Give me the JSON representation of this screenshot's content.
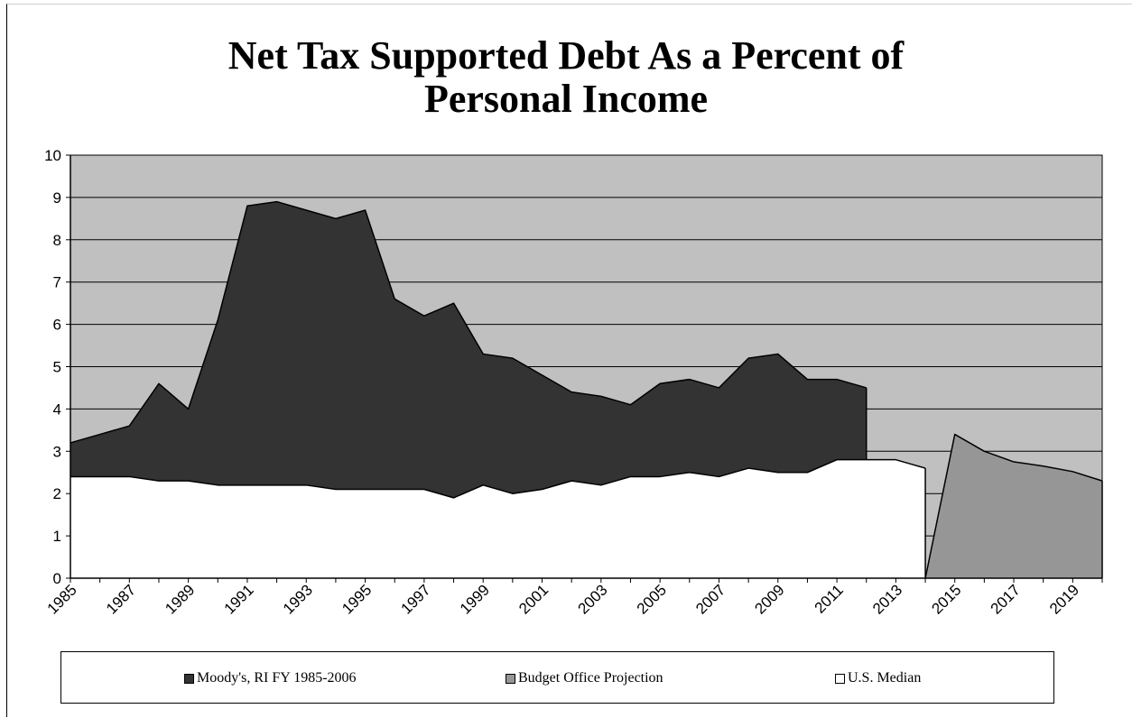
{
  "chart_data": {
    "type": "area",
    "title_lines": [
      "Net Tax Supported Debt As a Percent of",
      "Personal Income"
    ],
    "xlabel": "",
    "ylabel": "",
    "ylim": [
      0,
      10
    ],
    "xlim": [
      1985,
      2020
    ],
    "y_ticks": [
      "0",
      "1",
      "2",
      "3",
      "4",
      "5",
      "6",
      "7",
      "8",
      "9",
      "10"
    ],
    "x_tick_labels": [
      "1985",
      "1987",
      "1989",
      "1991",
      "1993",
      "1995",
      "1997",
      "1999",
      "2001",
      "2003",
      "2005",
      "2007",
      "2009",
      "2011",
      "2013",
      "2015",
      "2017",
      "2019"
    ],
    "grid": true,
    "legend_position": "bottom",
    "series": [
      {
        "name": "Moody's, RI FY 1985-2006",
        "color": "#333333",
        "x": [
          1985,
          1986,
          1987,
          1988,
          1989,
          1990,
          1991,
          1992,
          1993,
          1994,
          1995,
          1996,
          1997,
          1998,
          1999,
          2000,
          2001,
          2002,
          2003,
          2004,
          2005,
          2006,
          2007,
          2008,
          2009,
          2010,
          2011,
          2012
        ],
        "values": [
          3.2,
          3.4,
          3.6,
          4.6,
          4.0,
          6.1,
          8.8,
          8.9,
          8.7,
          8.5,
          8.7,
          6.6,
          6.2,
          6.5,
          5.3,
          5.2,
          4.8,
          4.4,
          4.3,
          4.1,
          4.6,
          4.7,
          4.5,
          5.2,
          5.3,
          4.7,
          4.7,
          4.5
        ]
      },
      {
        "name": "Budget Office Projection",
        "color": "#969696",
        "x": [
          2014,
          2015,
          2016,
          2017,
          2018,
          2019,
          2020
        ],
        "values": [
          0,
          3.4,
          3.0,
          2.75,
          2.65,
          2.52,
          2.3
        ]
      },
      {
        "name": "U.S. Median",
        "color": "#ffffff",
        "x": [
          1985,
          1986,
          1987,
          1988,
          1989,
          1990,
          1991,
          1992,
          1993,
          1994,
          1995,
          1996,
          1997,
          1998,
          1999,
          2000,
          2001,
          2002,
          2003,
          2004,
          2005,
          2006,
          2007,
          2008,
          2009,
          2010,
          2011,
          2012,
          2013,
          2014
        ],
        "values": [
          2.4,
          2.4,
          2.4,
          2.3,
          2.3,
          2.2,
          2.2,
          2.2,
          2.2,
          2.1,
          2.1,
          2.1,
          2.1,
          1.9,
          2.2,
          2.0,
          2.1,
          2.3,
          2.2,
          2.4,
          2.4,
          2.5,
          2.4,
          2.6,
          2.5,
          2.5,
          2.8,
          2.8,
          2.8,
          2.6
        ]
      }
    ],
    "plot_background": "#c0c0c0"
  }
}
